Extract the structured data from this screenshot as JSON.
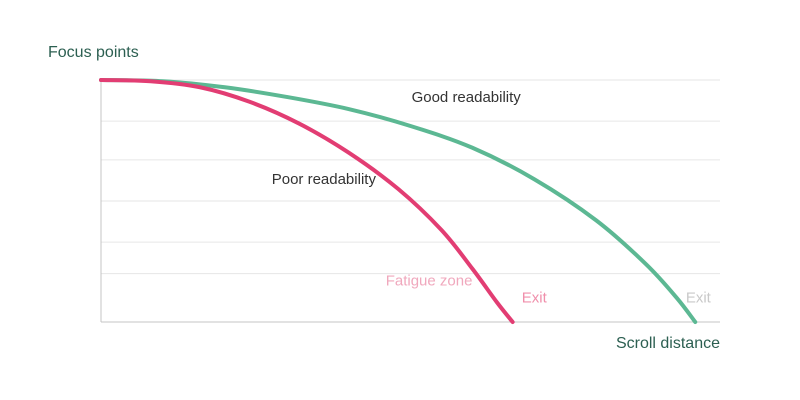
{
  "chart_data": {
    "type": "line",
    "title": "",
    "ylabel": "Focus points",
    "xlabel": "Scroll distance",
    "xlim": [
      0,
      100
    ],
    "ylim": [
      0,
      100
    ],
    "grid": true,
    "grid_lines_y": [
      20,
      33,
      50,
      67,
      83,
      100
    ],
    "colors": {
      "good": "#5cb893",
      "poor": "#e23d73",
      "fatigue": "#f0a8bd",
      "exit_good": "#c9c9c9",
      "exit_poor": "#f08fab",
      "axis_label": "#2c5f51",
      "annotation": "#333333"
    },
    "series": [
      {
        "key": "good",
        "values_x": [
          0,
          10,
          20,
          30,
          40,
          50,
          60,
          70,
          80,
          88,
          93,
          96
        ],
        "values_y": [
          100,
          99.5,
          97,
          93,
          88,
          81,
          72,
          59,
          42,
          24,
          10,
          0
        ]
      },
      {
        "key": "poor",
        "values_x": [
          0,
          8,
          16,
          24,
          32,
          40,
          48,
          55,
          60,
          64,
          66.5
        ],
        "values_y": [
          100,
          99.5,
          97,
          91,
          82,
          70,
          55,
          38,
          22,
          8,
          0
        ]
      }
    ],
    "annotations": [
      {
        "key": "good_label",
        "text": "Good readability",
        "x": 59,
        "y": 91,
        "color_key": "annotation"
      },
      {
        "key": "poor_label",
        "text": "Poor readability",
        "x": 36,
        "y": 57,
        "color_key": "annotation"
      },
      {
        "key": "fatigue_label",
        "text": "Fatigue zone",
        "x": 53,
        "y": 15,
        "color_key": "fatigue"
      },
      {
        "key": "exit_poor_label",
        "text": "Exit",
        "x": 70,
        "y": 8,
        "color_key": "exit_poor"
      },
      {
        "key": "exit_good_label",
        "text": "Exit",
        "x": 96.5,
        "y": 8,
        "color_key": "exit_good"
      }
    ]
  }
}
